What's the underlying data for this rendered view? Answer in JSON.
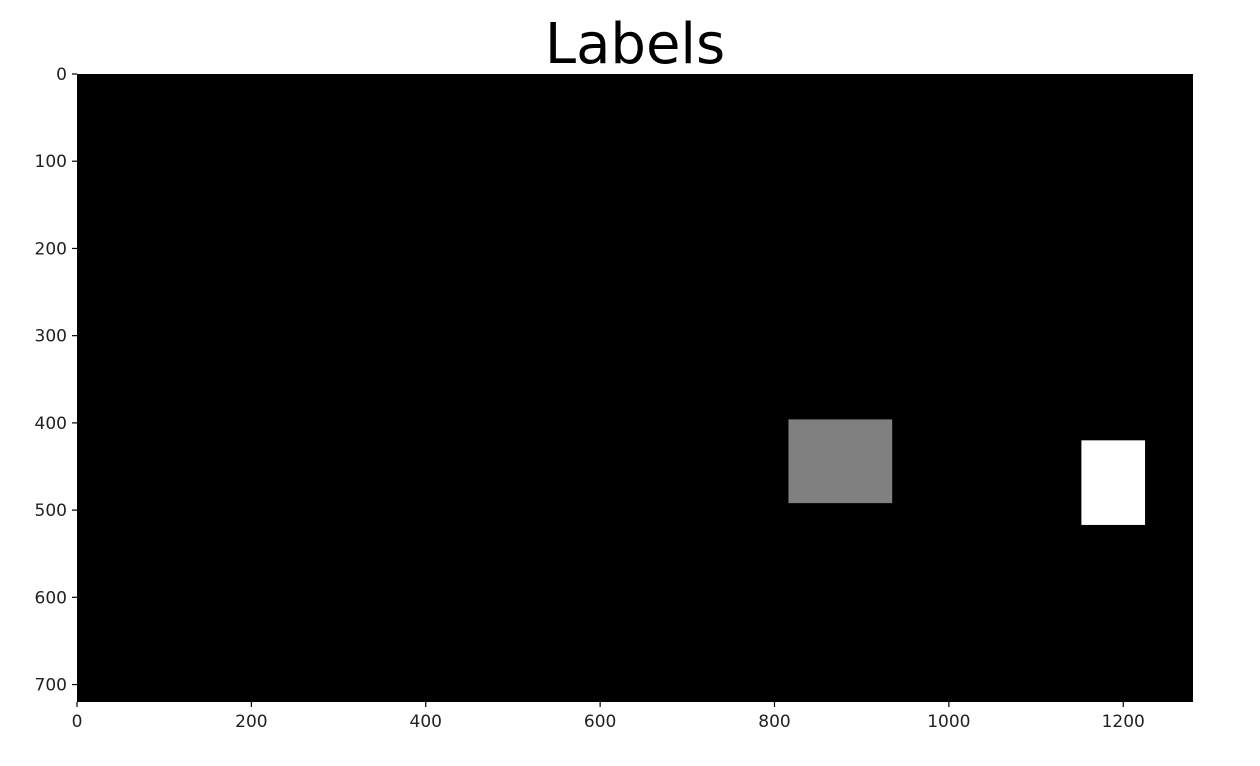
{
  "chart_data": {
    "type": "heatmap",
    "title": "Labels",
    "xlabel": "",
    "ylabel": "",
    "colormap": "gray",
    "background_color": "#000000",
    "image_size": [
      1280,
      720
    ],
    "xlim": [
      0,
      1280
    ],
    "ylim": [
      720,
      0
    ],
    "x_ticks": [
      0,
      200,
      400,
      600,
      800,
      1000,
      1200
    ],
    "y_ticks": [
      0,
      100,
      200,
      300,
      400,
      500,
      600,
      700
    ],
    "regions": [
      {
        "label": 1,
        "color": "#808080",
        "x_range": [
          816,
          935
        ],
        "y_range": [
          396,
          492
        ]
      },
      {
        "label": 2,
        "color": "#ffffff",
        "x_range": [
          1152,
          1225
        ],
        "y_range": [
          420,
          517
        ]
      }
    ],
    "grid": false,
    "legend": "none"
  }
}
